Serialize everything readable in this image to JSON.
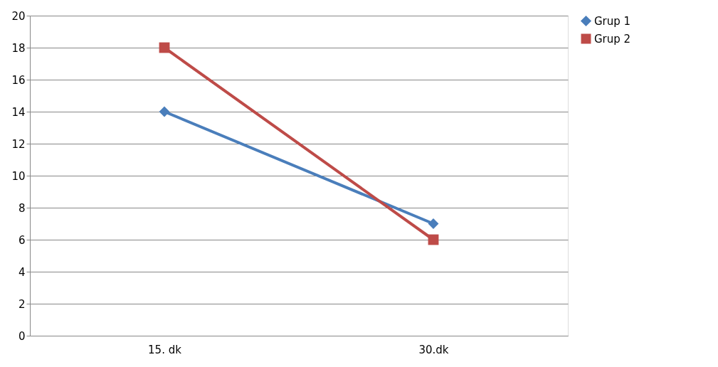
{
  "chart_data": {
    "type": "line",
    "categories": [
      "15. dk",
      "30.dk"
    ],
    "series": [
      {
        "name": "Grup 1",
        "color": "#4a7ebb",
        "values": [
          14,
          7
        ],
        "marker": "diamond"
      },
      {
        "name": "Grup 2",
        "color": "#be4b48",
        "values": [
          18,
          6
        ],
        "marker": "square"
      }
    ],
    "ylim": [
      0,
      20
    ],
    "yticks": [
      0,
      2,
      4,
      6,
      8,
      10,
      12,
      14,
      16,
      18,
      20
    ],
    "grid": "y",
    "legend": "right",
    "line_style": "solid"
  }
}
